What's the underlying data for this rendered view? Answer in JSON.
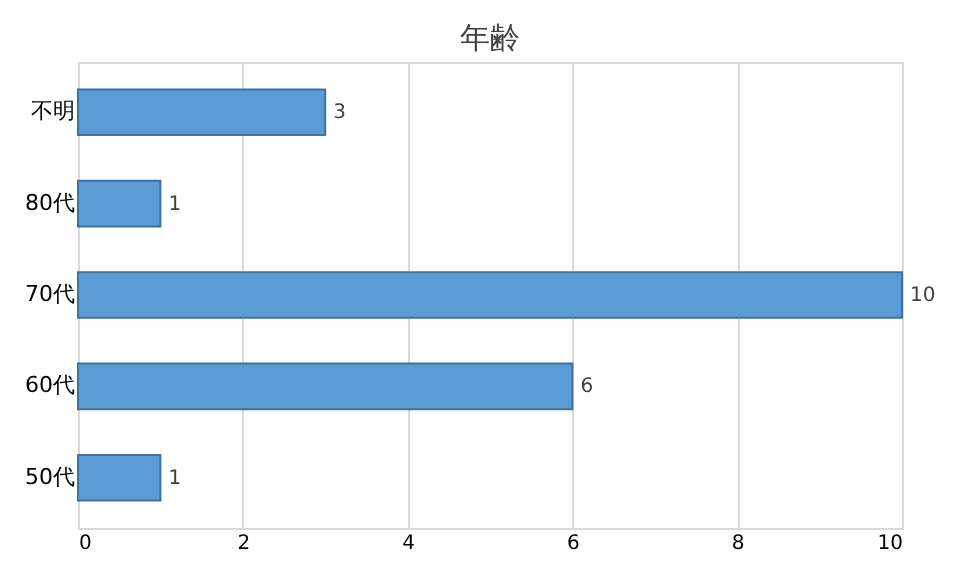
{
  "chart_data": {
    "type": "bar",
    "orientation": "horizontal",
    "title": "年齢",
    "categories": [
      "不明",
      "80代",
      "70代",
      "60代",
      "50代"
    ],
    "values": [
      3,
      1,
      10,
      6,
      1
    ],
    "color": "#5b9bd5",
    "xlim": [
      0,
      10
    ],
    "xticks": [
      0,
      2,
      4,
      6,
      8,
      10
    ],
    "grid": "x",
    "data_labels": true
  }
}
